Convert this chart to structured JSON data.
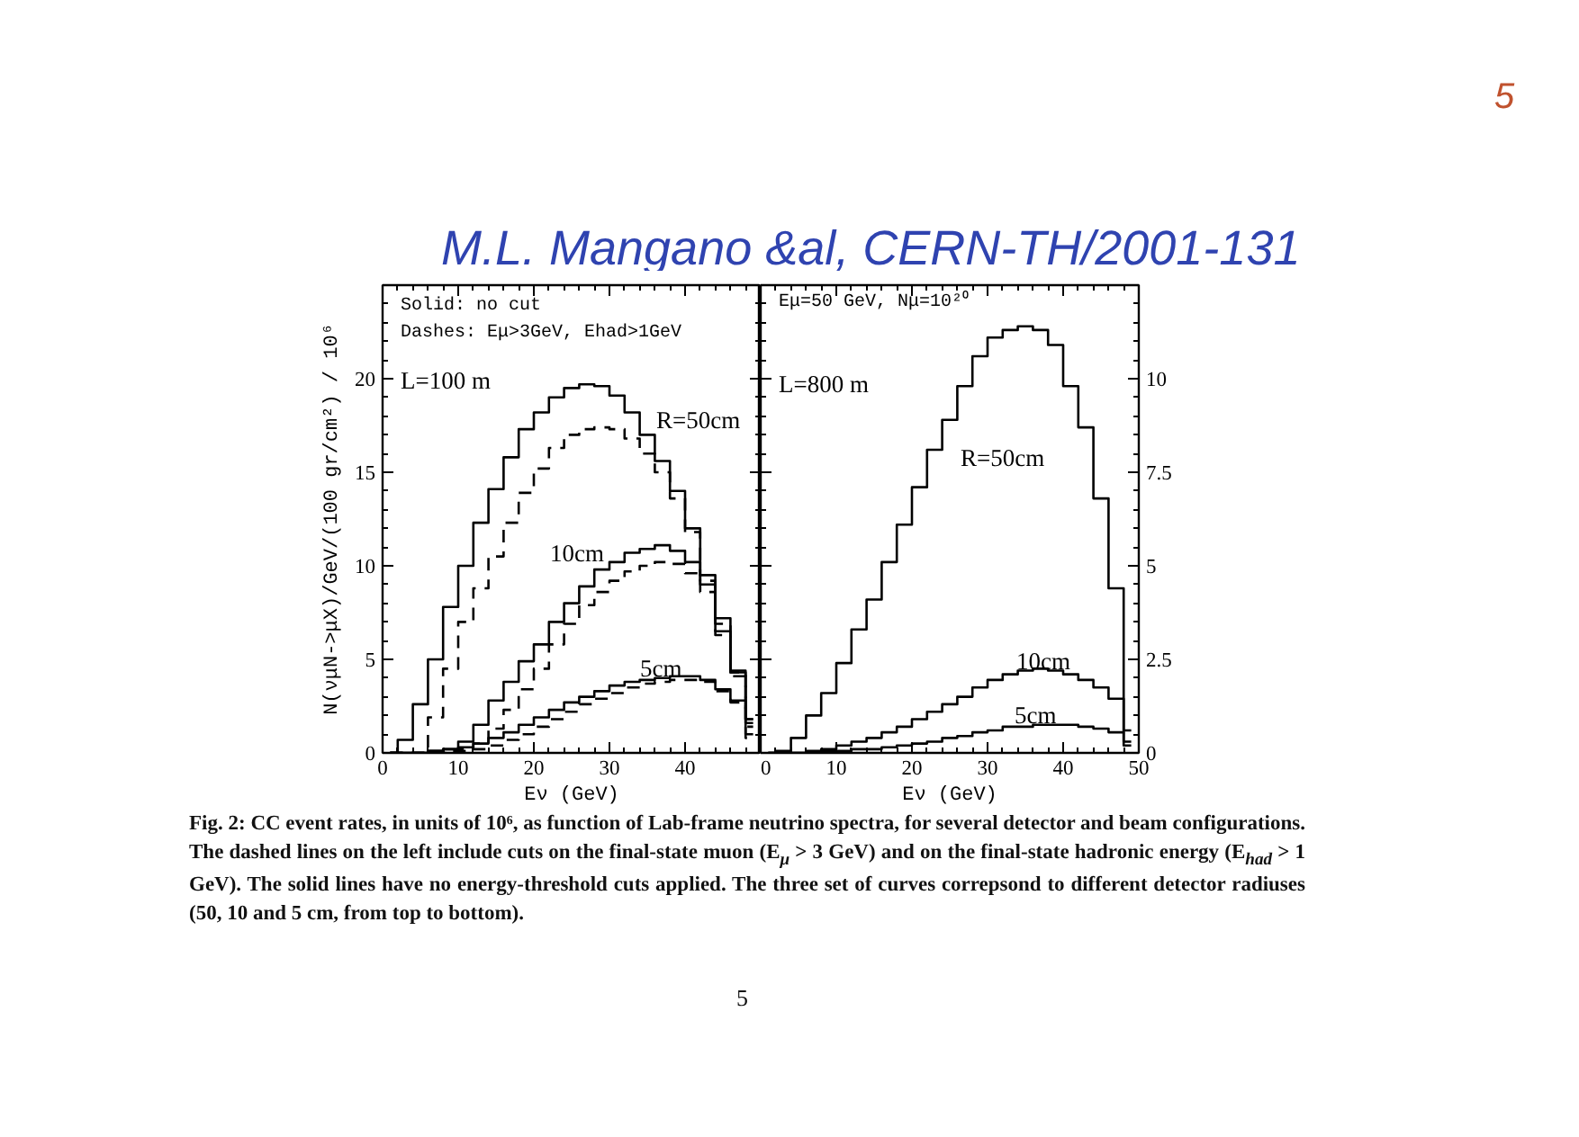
{
  "chart_data": [
    {
      "type": "step",
      "xlabel": "Eν (GeV)",
      "ylabel": "N(νμN->μX)/GeV/(100 gr/cm²) / 10⁶",
      "x": [
        1,
        3,
        5,
        7,
        9,
        11,
        13,
        15,
        17,
        19,
        21,
        23,
        25,
        27,
        29,
        31,
        33,
        35,
        37,
        39,
        41,
        43,
        45,
        47,
        49
      ],
      "xlim": [
        0,
        50
      ],
      "xticks": [
        0,
        10,
        20,
        30,
        40
      ],
      "ylim": [
        0,
        25
      ],
      "yticks": [
        0,
        5,
        10,
        15,
        20
      ],
      "series": [
        {
          "color": "#000000",
          "line_style": "solid",
          "values": [
            0,
            0.7,
            2.6,
            5.0,
            7.8,
            10.0,
            12.3,
            14.1,
            15.8,
            17.3,
            18.2,
            19.0,
            19.5,
            19.7,
            19.6,
            19.1,
            18.2,
            17.0,
            15.6,
            14.0,
            12.0,
            9.5,
            7.2,
            4.4,
            1.8
          ]
        },
        {
          "color": "#000000",
          "line_style": "dashed",
          "values": [
            0,
            0,
            0,
            1.9,
            4.5,
            7.0,
            8.8,
            10.5,
            12.3,
            13.9,
            15.2,
            16.3,
            17.0,
            17.3,
            17.4,
            17.3,
            16.8,
            16.0,
            15.0,
            13.6,
            11.8,
            9.2,
            6.9,
            4.3,
            1.8
          ]
        },
        {
          "color": "#000000",
          "line_style": "solid",
          "values": [
            0,
            0,
            0,
            0.1,
            0.2,
            0.6,
            1.5,
            2.8,
            3.8,
            4.9,
            5.8,
            7.0,
            8.0,
            8.9,
            9.8,
            10.2,
            10.7,
            10.9,
            11.1,
            10.8,
            10.2,
            9.0,
            6.5,
            4.3,
            1.6
          ]
        },
        {
          "color": "#000000",
          "line_style": "dashed",
          "values": [
            0,
            0,
            0,
            0,
            0.1,
            0.2,
            0.5,
            1.3,
            2.3,
            3.4,
            4.5,
            5.8,
            6.9,
            7.9,
            8.6,
            9.2,
            9.7,
            10.0,
            10.2,
            10.1,
            9.6,
            8.6,
            6.3,
            4.1,
            1.4
          ]
        },
        {
          "color": "#000000",
          "line_style": "solid",
          "values": [
            0,
            0,
            0,
            0.1,
            0.2,
            0.3,
            0.5,
            0.8,
            1.1,
            1.5,
            1.9,
            2.3,
            2.7,
            3.0,
            3.3,
            3.6,
            3.8,
            3.9,
            4.0,
            4.1,
            4.1,
            3.9,
            3.4,
            2.8,
            1.0
          ]
        },
        {
          "color": "#000000",
          "line_style": "dashed",
          "values": [
            0,
            0,
            0,
            0,
            0,
            0.1,
            0.2,
            0.4,
            0.7,
            1.0,
            1.4,
            1.8,
            2.2,
            2.6,
            2.9,
            3.2,
            3.5,
            3.7,
            3.8,
            3.9,
            3.9,
            3.8,
            3.3,
            2.7,
            0.8
          ]
        }
      ],
      "annotations": [
        "Solid: no cut",
        "Dashes: Eμ>3GeV, Ehad>1GeV",
        "L=100 m",
        "R=50cm",
        "10cm",
        "5cm"
      ]
    },
    {
      "type": "step",
      "xlabel": "Eν (GeV)",
      "x": [
        1,
        3,
        5,
        7,
        9,
        11,
        13,
        15,
        17,
        19,
        21,
        23,
        25,
        27,
        29,
        31,
        33,
        35,
        37,
        39,
        41,
        43,
        45,
        47,
        49
      ],
      "xlim": [
        0,
        50
      ],
      "xticks": [
        0,
        10,
        20,
        30,
        40,
        50
      ],
      "y2lim": [
        0,
        12.5
      ],
      "y2ticks": [
        0,
        2.5,
        5,
        7.5,
        10
      ],
      "series": [
        {
          "color": "#000000",
          "line_style": "solid",
          "axis": "y2",
          "values": [
            0,
            0.05,
            0.4,
            1.0,
            1.6,
            2.4,
            3.3,
            4.1,
            5.1,
            6.1,
            7.1,
            8.1,
            8.9,
            9.8,
            10.6,
            11.1,
            11.3,
            11.4,
            11.3,
            10.9,
            9.8,
            8.7,
            6.8,
            4.4,
            0.3
          ]
        },
        {
          "color": "#000000",
          "line_style": "solid",
          "axis": "y2",
          "values": [
            0,
            0,
            0,
            0.05,
            0.1,
            0.2,
            0.3,
            0.4,
            0.55,
            0.7,
            0.9,
            1.1,
            1.3,
            1.5,
            1.75,
            1.95,
            2.1,
            2.2,
            2.25,
            2.2,
            2.1,
            1.95,
            1.75,
            1.45,
            0.6
          ]
        },
        {
          "color": "#000000",
          "line_style": "solid",
          "axis": "y2",
          "values": [
            0,
            0,
            0,
            0,
            0.05,
            0.05,
            0.1,
            0.1,
            0.15,
            0.2,
            0.25,
            0.3,
            0.4,
            0.45,
            0.55,
            0.6,
            0.7,
            0.7,
            0.75,
            0.75,
            0.75,
            0.7,
            0.65,
            0.55,
            0.2
          ]
        }
      ],
      "annotations": [
        "Eμ=50 GeV, Nμ=10²⁰",
        "L=800 m",
        "R=50cm",
        "10cm",
        "5cm"
      ]
    },
    {
      "type": "other",
      "annotations": [
        "5",
        "M.L. Mangano &al, CERN-TH/2001-131",
        "Fig. 2: CC event rates, in units of 10⁶, as function of Lab-frame neutrino spectra, for several detector and beam configurations. The dashed lines on the left include cuts on the final-state muon (E$_{μ}$ > 3 GeV) and on the final-state hadronic energy (E$_{had}$ > 1 GeV). The solid lines have no energy-threshold cuts applied. The three set of curves correpsond to different detector radiuses (50, 10 and 5 cm, from top to bottom).",
        "5"
      ]
    }
  ]
}
